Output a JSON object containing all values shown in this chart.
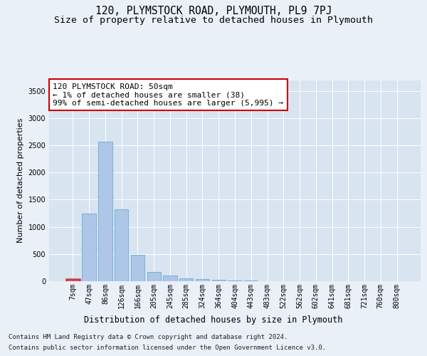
{
  "title": "120, PLYMSTOCK ROAD, PLYMOUTH, PL9 7PJ",
  "subtitle": "Size of property relative to detached houses in Plymouth",
  "xlabel": "Distribution of detached houses by size in Plymouth",
  "ylabel": "Number of detached properties",
  "categories": [
    "7sqm",
    "47sqm",
    "86sqm",
    "126sqm",
    "166sqm",
    "205sqm",
    "245sqm",
    "285sqm",
    "324sqm",
    "364sqm",
    "404sqm",
    "443sqm",
    "483sqm",
    "522sqm",
    "562sqm",
    "602sqm",
    "641sqm",
    "681sqm",
    "721sqm",
    "760sqm",
    "800sqm"
  ],
  "values": [
    38,
    1240,
    2570,
    1320,
    480,
    175,
    100,
    55,
    38,
    30,
    18,
    8,
    5,
    3,
    2,
    1,
    1,
    0,
    0,
    0,
    0
  ],
  "bar_color": "#aec6e8",
  "bar_edge_color": "#6aaad4",
  "highlight_bar_color": "#cc3333",
  "annotation_line1": "120 PLYMSTOCK ROAD: 50sqm",
  "annotation_line2": "← 1% of detached houses are smaller (38)",
  "annotation_line3": "99% of semi-detached houses are larger (5,995) →",
  "ylim": [
    0,
    3700
  ],
  "yticks": [
    0,
    500,
    1000,
    1500,
    2000,
    2500,
    3000,
    3500
  ],
  "background_color": "#eaf0f8",
  "plot_bg_color": "#d8e4f0",
  "grid_color": "#ffffff",
  "footer_line1": "Contains HM Land Registry data © Crown copyright and database right 2024.",
  "footer_line2": "Contains public sector information licensed under the Open Government Licence v3.0.",
  "title_fontsize": 10.5,
  "subtitle_fontsize": 9.5,
  "xlabel_fontsize": 8.5,
  "ylabel_fontsize": 8,
  "tick_fontsize": 7,
  "annotation_fontsize": 8,
  "footer_fontsize": 6.5
}
